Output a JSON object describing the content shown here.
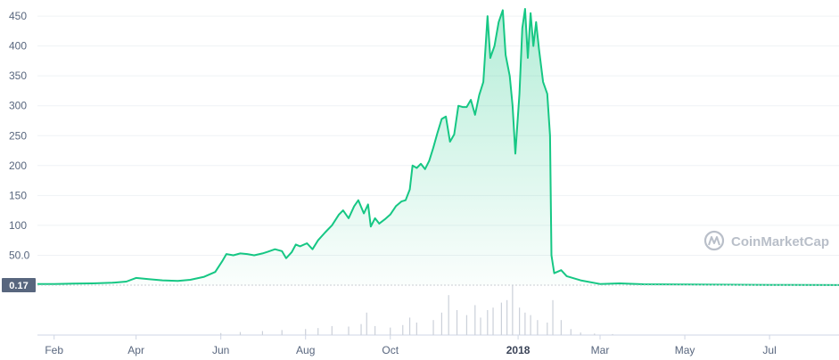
{
  "chart_data": {
    "type": "area",
    "title": "",
    "xlabel": "",
    "ylabel": "",
    "ylim": [
      0,
      465
    ],
    "y_ticks": [
      {
        "value": 50,
        "label": "50.0"
      },
      {
        "value": 100,
        "label": "100"
      },
      {
        "value": 150,
        "label": "150"
      },
      {
        "value": 200,
        "label": "200"
      },
      {
        "value": 250,
        "label": "250"
      },
      {
        "value": 300,
        "label": "300"
      },
      {
        "value": 350,
        "label": "350"
      },
      {
        "value": 400,
        "label": "400"
      },
      {
        "value": 450,
        "label": "450"
      }
    ],
    "x_ticks": [
      {
        "date": "2017-02-01",
        "label": "Feb",
        "bold": false
      },
      {
        "date": "2017-04-01",
        "label": "Apr",
        "bold": false
      },
      {
        "date": "2017-06-01",
        "label": "Jun",
        "bold": false
      },
      {
        "date": "2017-08-01",
        "label": "Aug",
        "bold": false
      },
      {
        "date": "2017-10-01",
        "label": "Oct",
        "bold": false
      },
      {
        "date": "2018-01-01",
        "label": "2018",
        "bold": true
      },
      {
        "date": "2018-03-01",
        "label": "Mar",
        "bold": false
      },
      {
        "date": "2018-05-01",
        "label": "May",
        "bold": false
      },
      {
        "date": "2018-07-01",
        "label": "Jul",
        "bold": false
      }
    ],
    "x_range": [
      "2017-01-20",
      "2018-08-20"
    ],
    "current_price_label": "0.17",
    "grid": true,
    "line_color": "#16c784",
    "series": [
      {
        "values": [
          [
            "2017-01-20",
            2
          ],
          [
            "2017-02-01",
            2
          ],
          [
            "2017-02-15",
            2.5
          ],
          [
            "2017-03-01",
            3
          ],
          [
            "2017-03-15",
            4
          ],
          [
            "2017-03-25",
            6
          ],
          [
            "2017-04-01",
            12
          ],
          [
            "2017-04-10",
            10
          ],
          [
            "2017-04-20",
            8
          ],
          [
            "2017-05-01",
            7
          ],
          [
            "2017-05-10",
            9
          ],
          [
            "2017-05-20",
            14
          ],
          [
            "2017-05-28",
            22
          ],
          [
            "2017-06-02",
            40
          ],
          [
            "2017-06-05",
            52
          ],
          [
            "2017-06-10",
            50
          ],
          [
            "2017-06-15",
            53
          ],
          [
            "2017-06-20",
            52
          ],
          [
            "2017-06-25",
            50
          ],
          [
            "2017-07-01",
            53
          ],
          [
            "2017-07-05",
            56
          ],
          [
            "2017-07-10",
            60
          ],
          [
            "2017-07-15",
            57
          ],
          [
            "2017-07-18",
            45
          ],
          [
            "2017-07-22",
            55
          ],
          [
            "2017-07-25",
            68
          ],
          [
            "2017-07-28",
            65
          ],
          [
            "2017-08-02",
            70
          ],
          [
            "2017-08-06",
            60
          ],
          [
            "2017-08-10",
            75
          ],
          [
            "2017-08-15",
            88
          ],
          [
            "2017-08-20",
            100
          ],
          [
            "2017-08-25",
            118
          ],
          [
            "2017-08-28",
            125
          ],
          [
            "2017-09-01",
            112
          ],
          [
            "2017-09-05",
            132
          ],
          [
            "2017-09-08",
            142
          ],
          [
            "2017-09-12",
            120
          ],
          [
            "2017-09-15",
            135
          ],
          [
            "2017-09-17",
            98
          ],
          [
            "2017-09-20",
            112
          ],
          [
            "2017-09-23",
            103
          ],
          [
            "2017-09-27",
            110
          ],
          [
            "2017-10-01",
            118
          ],
          [
            "2017-10-05",
            132
          ],
          [
            "2017-10-09",
            140
          ],
          [
            "2017-10-12",
            142
          ],
          [
            "2017-10-15",
            160
          ],
          [
            "2017-10-17",
            200
          ],
          [
            "2017-10-20",
            196
          ],
          [
            "2017-10-23",
            203
          ],
          [
            "2017-10-26",
            194
          ],
          [
            "2017-10-29",
            208
          ],
          [
            "2017-11-01",
            230
          ],
          [
            "2017-11-04",
            255
          ],
          [
            "2017-11-07",
            278
          ],
          [
            "2017-11-10",
            282
          ],
          [
            "2017-11-13",
            240
          ],
          [
            "2017-11-16",
            252
          ],
          [
            "2017-11-19",
            300
          ],
          [
            "2017-11-22",
            298
          ],
          [
            "2017-11-25",
            298
          ],
          [
            "2017-11-28",
            310
          ],
          [
            "2017-12-01",
            285
          ],
          [
            "2017-12-04",
            318
          ],
          [
            "2017-12-07",
            340
          ],
          [
            "2017-12-10",
            450
          ],
          [
            "2017-12-12",
            380
          ],
          [
            "2017-12-15",
            400
          ],
          [
            "2017-12-18",
            440
          ],
          [
            "2017-12-21",
            460
          ],
          [
            "2017-12-23",
            385
          ],
          [
            "2017-12-26",
            350
          ],
          [
            "2017-12-28",
            300
          ],
          [
            "2017-12-30",
            220
          ],
          [
            "2018-01-02",
            320
          ],
          [
            "2018-01-04",
            430
          ],
          [
            "2018-01-06",
            462
          ],
          [
            "2018-01-08",
            380
          ],
          [
            "2018-01-10",
            455
          ],
          [
            "2018-01-12",
            400
          ],
          [
            "2018-01-14",
            440
          ],
          [
            "2018-01-16",
            395
          ],
          [
            "2018-01-19",
            340
          ],
          [
            "2018-01-22",
            320
          ],
          [
            "2018-01-24",
            250
          ],
          [
            "2018-01-25",
            50
          ],
          [
            "2018-01-27",
            20
          ],
          [
            "2018-02-01",
            25
          ],
          [
            "2018-02-05",
            15
          ],
          [
            "2018-02-15",
            8
          ],
          [
            "2018-03-01",
            2
          ],
          [
            "2018-03-15",
            3
          ],
          [
            "2018-04-01",
            1.5
          ],
          [
            "2018-05-01",
            1
          ],
          [
            "2018-06-01",
            0.8
          ],
          [
            "2018-07-01",
            0.5
          ],
          [
            "2018-08-20",
            0.2
          ]
        ]
      }
    ],
    "volume": {
      "values": [
        [
          "2017-06-01",
          0.04
        ],
        [
          "2017-06-15",
          0.06
        ],
        [
          "2017-07-01",
          0.08
        ],
        [
          "2017-07-15",
          0.1
        ],
        [
          "2017-08-01",
          0.12
        ],
        [
          "2017-08-10",
          0.14
        ],
        [
          "2017-08-20",
          0.18
        ],
        [
          "2017-09-01",
          0.17
        ],
        [
          "2017-09-10",
          0.22
        ],
        [
          "2017-09-14",
          0.45
        ],
        [
          "2017-09-20",
          0.18
        ],
        [
          "2017-10-01",
          0.15
        ],
        [
          "2017-10-10",
          0.2
        ],
        [
          "2017-10-15",
          0.35
        ],
        [
          "2017-10-20",
          0.25
        ],
        [
          "2017-11-01",
          0.3
        ],
        [
          "2017-11-07",
          0.45
        ],
        [
          "2017-11-12",
          0.8
        ],
        [
          "2017-11-18",
          0.5
        ],
        [
          "2017-11-25",
          0.4
        ],
        [
          "2017-12-01",
          0.6
        ],
        [
          "2017-12-05",
          0.35
        ],
        [
          "2017-12-10",
          0.5
        ],
        [
          "2017-12-14",
          0.55
        ],
        [
          "2017-12-20",
          0.65
        ],
        [
          "2017-12-24",
          0.7
        ],
        [
          "2017-12-28",
          1.0
        ],
        [
          "2018-01-02",
          0.55
        ],
        [
          "2018-01-06",
          0.45
        ],
        [
          "2018-01-10",
          0.4
        ],
        [
          "2018-01-15",
          0.3
        ],
        [
          "2018-01-22",
          0.25
        ],
        [
          "2018-01-26",
          0.7
        ],
        [
          "2018-02-01",
          0.3
        ],
        [
          "2018-02-08",
          0.12
        ],
        [
          "2018-02-15",
          0.05
        ],
        [
          "2018-02-25",
          0.03
        ],
        [
          "2018-03-10",
          0.02
        ]
      ]
    }
  },
  "watermark": {
    "icon": "coinmarketcap-logo-icon",
    "text": "CoinMarketCap"
  }
}
